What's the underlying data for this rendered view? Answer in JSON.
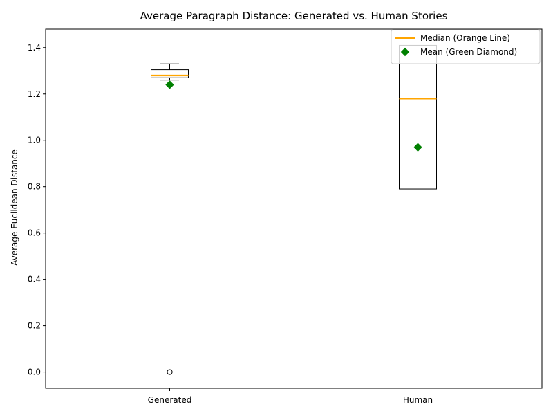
{
  "chart_data": {
    "type": "box",
    "title": "Average Paragraph Distance: Generated vs. Human Stories",
    "xlabel": "",
    "ylabel": "Average Euclidean Distance",
    "ylim": [
      -0.07,
      1.48
    ],
    "yticks": [
      0.0,
      0.2,
      0.4,
      0.6,
      0.8,
      1.0,
      1.2,
      1.4
    ],
    "ytick_labels": [
      "0.0",
      "0.2",
      "0.4",
      "0.6",
      "0.8",
      "1.0",
      "1.2",
      "1.4"
    ],
    "categories": [
      "Generated",
      "Human"
    ],
    "boxes": [
      {
        "label": "Generated",
        "whisker_low": 1.26,
        "q1": 1.27,
        "median": 1.28,
        "q3": 1.305,
        "whisker_high": 1.33,
        "mean": 1.24,
        "outliers": [
          0.0
        ]
      },
      {
        "label": "Human",
        "whisker_low": 0.0,
        "q1": 0.79,
        "median": 1.18,
        "q3": 1.41,
        "whisker_high": 1.41,
        "mean": 0.97,
        "outliers": []
      }
    ],
    "legend": {
      "position": "top-right",
      "entries": [
        {
          "label": "Median (Orange Line)",
          "marker": "line",
          "color": "#ffa500"
        },
        {
          "label": "Mean (Green Diamond)",
          "marker": "diamond",
          "color": "#008000"
        }
      ]
    },
    "colors": {
      "median": "#ffa500",
      "mean": "#008000",
      "box": "#000000"
    },
    "grid": false
  }
}
